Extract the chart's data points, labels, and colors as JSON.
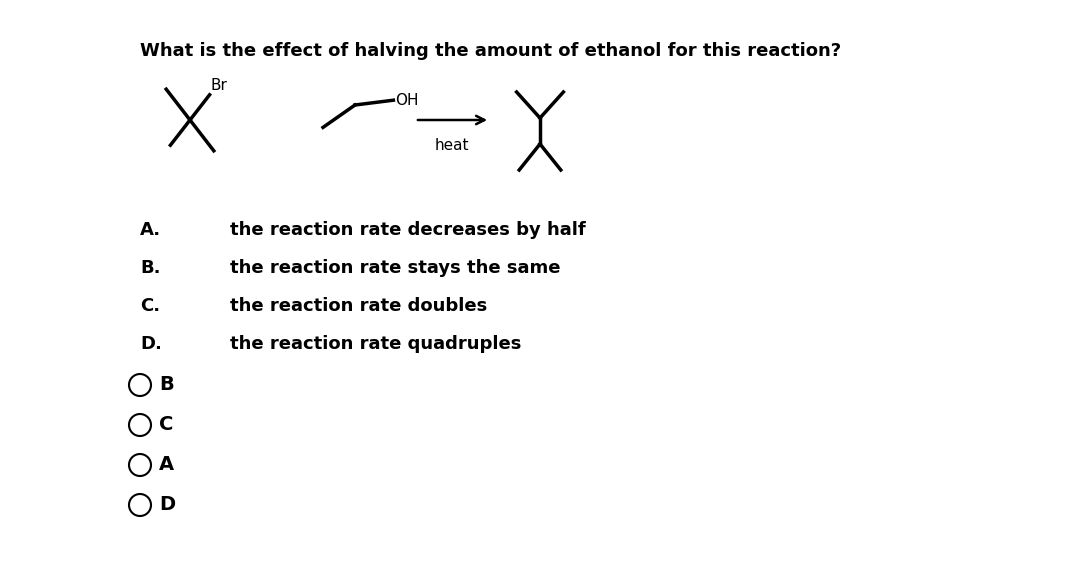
{
  "title": "What is the effect of halving the amount of ethanol for this reaction?",
  "title_fontsize": 13,
  "options": [
    {
      "label": "A.",
      "text": "the reaction rate decreases by half"
    },
    {
      "label": "B.",
      "text": "the reaction rate stays the same"
    },
    {
      "label": "C.",
      "text": "the reaction rate doubles"
    },
    {
      "label": "D.",
      "text": "the reaction rate quadruples"
    }
  ],
  "radio_options": [
    "B",
    "C",
    "A",
    "D"
  ],
  "background_color": "#ffffff",
  "text_color": "#000000",
  "label_fontsize": 13,
  "option_fontsize": 13,
  "radio_fontsize": 14,
  "heat_label": "heat"
}
